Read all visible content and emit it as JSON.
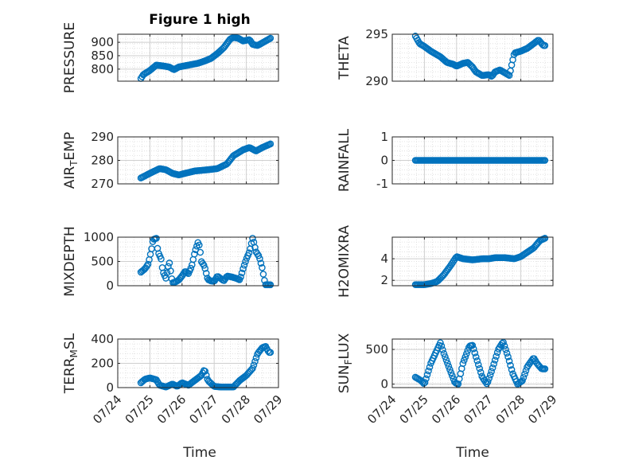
{
  "figure": {
    "title": "Figure 1 high",
    "xlabel": "Time"
  },
  "colors": {
    "marker": "#0072BD",
    "axis": "#262626",
    "grid": "#dcdcdc",
    "background": "#ffffff"
  },
  "chart_data": [
    {
      "type": "scatter",
      "ylabel": "PRESSURE",
      "ylim": [
        755,
        930
      ],
      "yticks": [
        800,
        850,
        900
      ],
      "ytick_labels": [
        "800",
        "850",
        "900"
      ],
      "xlim": [
        0,
        5
      ],
      "xticks": [
        0,
        1,
        2,
        3,
        4,
        5
      ],
      "xtick_labels": [],
      "x_domain": [
        0.72,
        4.75
      ],
      "series": [
        {
          "trend": [
            [
              0.72,
              765
            ],
            [
              0.8,
              780
            ],
            [
              1.0,
              795
            ],
            [
              1.2,
              815
            ],
            [
              1.4,
              812
            ],
            [
              1.6,
              808
            ],
            [
              1.75,
              798
            ],
            [
              1.9,
              808
            ],
            [
              2.2,
              815
            ],
            [
              2.5,
              822
            ],
            [
              2.7,
              830
            ],
            [
              2.9,
              840
            ],
            [
              3.1,
              858
            ],
            [
              3.3,
              880
            ],
            [
              3.5,
              912
            ],
            [
              3.6,
              918
            ],
            [
              3.75,
              915
            ],
            [
              3.9,
              905
            ],
            [
              4.1,
              910
            ],
            [
              4.2,
              892
            ],
            [
              4.35,
              888
            ],
            [
              4.5,
              898
            ],
            [
              4.75,
              915
            ]
          ]
        }
      ]
    },
    {
      "type": "scatter",
      "ylabel": "THETA",
      "ylim": [
        290,
        295
      ],
      "yticks": [
        290,
        295
      ],
      "ytick_labels": [
        "290",
        "295"
      ],
      "xlim": [
        0,
        5
      ],
      "xticks": [
        0,
        1,
        2,
        3,
        4,
        5
      ],
      "xtick_labels": [],
      "x_domain": [
        0.72,
        4.75
      ],
      "series": [
        {
          "trend": [
            [
              0.72,
              294.8
            ],
            [
              0.85,
              294.0
            ],
            [
              1.0,
              293.7
            ],
            [
              1.2,
              293.2
            ],
            [
              1.5,
              292.6
            ],
            [
              1.7,
              292.0
            ],
            [
              1.9,
              291.8
            ],
            [
              2.0,
              291.6
            ],
            [
              2.2,
              291.9
            ],
            [
              2.35,
              292.0
            ],
            [
              2.5,
              291.5
            ],
            [
              2.6,
              291.0
            ],
            [
              2.8,
              290.6
            ],
            [
              3.0,
              290.7
            ],
            [
              3.1,
              290.5
            ],
            [
              3.2,
              291.0
            ],
            [
              3.35,
              291.2
            ],
            [
              3.5,
              290.9
            ],
            [
              3.65,
              290.6
            ],
            [
              3.7,
              291.5
            ],
            [
              3.8,
              293.0
            ],
            [
              4.0,
              293.2
            ],
            [
              4.2,
              293.5
            ],
            [
              4.4,
              294.0
            ],
            [
              4.55,
              294.4
            ],
            [
              4.7,
              293.8
            ]
          ]
        }
      ]
    },
    {
      "type": "scatter",
      "ylabel": "AIR_TEMP",
      "ylim": [
        270,
        290
      ],
      "yticks": [
        270,
        280,
        290
      ],
      "ytick_labels": [
        "270",
        "280",
        "290"
      ],
      "xlim": [
        0,
        5
      ],
      "xticks": [
        0,
        1,
        2,
        3,
        4,
        5
      ],
      "xtick_labels": [],
      "x_domain": [
        0.72,
        4.75
      ],
      "series": [
        {
          "trend": [
            [
              0.72,
              272.5
            ],
            [
              1.0,
              274.5
            ],
            [
              1.3,
              276.5
            ],
            [
              1.5,
              276.0
            ],
            [
              1.7,
              274.5
            ],
            [
              1.9,
              273.8
            ],
            [
              2.1,
              274.5
            ],
            [
              2.4,
              275.5
            ],
            [
              2.8,
              276.0
            ],
            [
              3.1,
              276.5
            ],
            [
              3.4,
              278.5
            ],
            [
              3.6,
              282.0
            ],
            [
              3.9,
              284.5
            ],
            [
              4.1,
              285.5
            ],
            [
              4.3,
              284.0
            ],
            [
              4.5,
              285.5
            ],
            [
              4.75,
              287.0
            ]
          ]
        }
      ]
    },
    {
      "type": "scatter",
      "ylabel": "RAINFALL",
      "ylim": [
        -1,
        1
      ],
      "yticks": [
        -1,
        0,
        1
      ],
      "ytick_labels": [
        "-1",
        "0",
        "1"
      ],
      "xlim": [
        0,
        5
      ],
      "xticks": [
        0,
        1,
        2,
        3,
        4,
        5
      ],
      "xtick_labels": [],
      "x_domain": [
        0.72,
        4.75
      ],
      "series": [
        {
          "trend": [
            [
              0.72,
              0
            ],
            [
              4.75,
              0
            ]
          ]
        }
      ]
    },
    {
      "type": "scatter",
      "ylabel": "MIXDEPTH",
      "ylim": [
        0,
        1000
      ],
      "yticks": [
        0,
        500,
        1000
      ],
      "ytick_labels": [
        "0",
        "500",
        "1000"
      ],
      "xlim": [
        0,
        5
      ],
      "xticks": [
        0,
        1,
        2,
        3,
        4,
        5
      ],
      "xtick_labels": [],
      "x_domain": [
        0.72,
        4.75
      ],
      "series": [
        {
          "trend": [
            [
              0.72,
              280
            ],
            [
              0.85,
              350
            ],
            [
              0.95,
              450
            ],
            [
              1.05,
              750
            ],
            [
              1.1,
              950
            ],
            [
              1.2,
              980
            ],
            [
              1.25,
              700
            ],
            [
              1.35,
              550
            ],
            [
              1.4,
              300
            ],
            [
              1.5,
              150
            ],
            [
              1.6,
              500
            ],
            [
              1.7,
              60
            ],
            [
              1.8,
              80
            ],
            [
              1.9,
              120
            ],
            [
              2.0,
              200
            ],
            [
              2.1,
              300
            ],
            [
              2.2,
              250
            ],
            [
              2.3,
              400
            ],
            [
              2.4,
              700
            ],
            [
              2.5,
              900
            ],
            [
              2.55,
              800
            ],
            [
              2.6,
              500
            ],
            [
              2.7,
              400
            ],
            [
              2.8,
              130
            ],
            [
              2.9,
              100
            ],
            [
              3.0,
              90
            ],
            [
              3.1,
              200
            ],
            [
              3.2,
              150
            ],
            [
              3.3,
              100
            ],
            [
              3.4,
              200
            ],
            [
              3.55,
              180
            ],
            [
              3.7,
              150
            ],
            [
              3.8,
              120
            ],
            [
              3.9,
              350
            ],
            [
              4.0,
              550
            ],
            [
              4.1,
              700
            ],
            [
              4.2,
              990
            ],
            [
              4.3,
              700
            ],
            [
              4.4,
              600
            ],
            [
              4.5,
              350
            ],
            [
              4.55,
              150
            ],
            [
              4.6,
              20
            ]
          ]
        }
      ]
    },
    {
      "type": "scatter",
      "ylabel": "H2OMIXRA",
      "ylim": [
        1.5,
        6
      ],
      "yticks": [
        2,
        4
      ],
      "ytick_labels": [
        "2",
        "4"
      ],
      "xlim": [
        0,
        5
      ],
      "xticks": [
        0,
        1,
        2,
        3,
        4,
        5
      ],
      "xtick_labels": [],
      "x_domain": [
        0.72,
        4.75
      ],
      "series": [
        {
          "trend": [
            [
              0.72,
              1.6
            ],
            [
              1.0,
              1.6
            ],
            [
              1.2,
              1.7
            ],
            [
              1.4,
              1.9
            ],
            [
              1.6,
              2.5
            ],
            [
              1.8,
              3.3
            ],
            [
              2.0,
              4.2
            ],
            [
              2.2,
              4.0
            ],
            [
              2.5,
              3.9
            ],
            [
              2.8,
              4.0
            ],
            [
              3.0,
              4.0
            ],
            [
              3.2,
              4.1
            ],
            [
              3.5,
              4.1
            ],
            [
              3.8,
              4.0
            ],
            [
              4.0,
              4.2
            ],
            [
              4.2,
              4.6
            ],
            [
              4.4,
              5.0
            ],
            [
              4.6,
              5.7
            ],
            [
              4.75,
              5.9
            ]
          ]
        }
      ]
    },
    {
      "type": "scatter",
      "ylabel": "TERR_MSL",
      "ylim": [
        0,
        400
      ],
      "yticks": [
        0,
        200,
        400
      ],
      "ytick_labels": [
        "0",
        "200",
        "400"
      ],
      "xlim": [
        0,
        5
      ],
      "xticks": [
        0,
        1,
        2,
        3,
        4,
        5
      ],
      "xtick_labels": [
        "07/24",
        "07/25",
        "07/26",
        "07/27",
        "07/28",
        "07/29"
      ],
      "x_domain": [
        0.72,
        4.75
      ],
      "series": [
        {
          "trend": [
            [
              0.72,
              40
            ],
            [
              0.85,
              70
            ],
            [
              1.0,
              80
            ],
            [
              1.2,
              65
            ],
            [
              1.3,
              20
            ],
            [
              1.5,
              5
            ],
            [
              1.7,
              30
            ],
            [
              1.85,
              10
            ],
            [
              2.0,
              40
            ],
            [
              2.2,
              20
            ],
            [
              2.3,
              40
            ],
            [
              2.5,
              80
            ],
            [
              2.6,
              100
            ],
            [
              2.7,
              150
            ],
            [
              2.8,
              60
            ],
            [
              3.0,
              10
            ],
            [
              3.2,
              5
            ],
            [
              3.4,
              5
            ],
            [
              3.6,
              5
            ],
            [
              3.8,
              60
            ],
            [
              4.0,
              100
            ],
            [
              4.2,
              160
            ],
            [
              4.35,
              280
            ],
            [
              4.5,
              330
            ],
            [
              4.6,
              340
            ],
            [
              4.7,
              290
            ]
          ]
        }
      ]
    },
    {
      "type": "scatter",
      "ylabel": "SUN_FLUX",
      "ylim": [
        -50,
        650
      ],
      "yticks": [
        0,
        500
      ],
      "ytick_labels": [
        "0",
        "500"
      ],
      "xlim": [
        0,
        5
      ],
      "xticks": [
        0,
        1,
        2,
        3,
        4,
        5
      ],
      "xtick_labels": [
        "07/24",
        "07/25",
        "07/26",
        "07/27",
        "07/28",
        "07/29"
      ],
      "x_domain": [
        0.72,
        4.75
      ],
      "series": [
        {
          "trend": [
            [
              0.72,
              100
            ],
            [
              0.9,
              50
            ],
            [
              1.0,
              0
            ],
            [
              1.2,
              300
            ],
            [
              1.4,
              500
            ],
            [
              1.5,
              600
            ],
            [
              1.6,
              450
            ],
            [
              1.8,
              200
            ],
            [
              1.95,
              20
            ],
            [
              2.05,
              0
            ],
            [
              2.2,
              300
            ],
            [
              2.4,
              550
            ],
            [
              2.5,
              560
            ],
            [
              2.6,
              400
            ],
            [
              2.8,
              100
            ],
            [
              2.95,
              0
            ],
            [
              3.1,
              200
            ],
            [
              3.3,
              500
            ],
            [
              3.45,
              610
            ],
            [
              3.6,
              400
            ],
            [
              3.75,
              150
            ],
            [
              3.9,
              0
            ],
            [
              4.05,
              50
            ],
            [
              4.2,
              250
            ],
            [
              4.4,
              380
            ],
            [
              4.5,
              300
            ],
            [
              4.65,
              220
            ]
          ]
        }
      ]
    }
  ]
}
